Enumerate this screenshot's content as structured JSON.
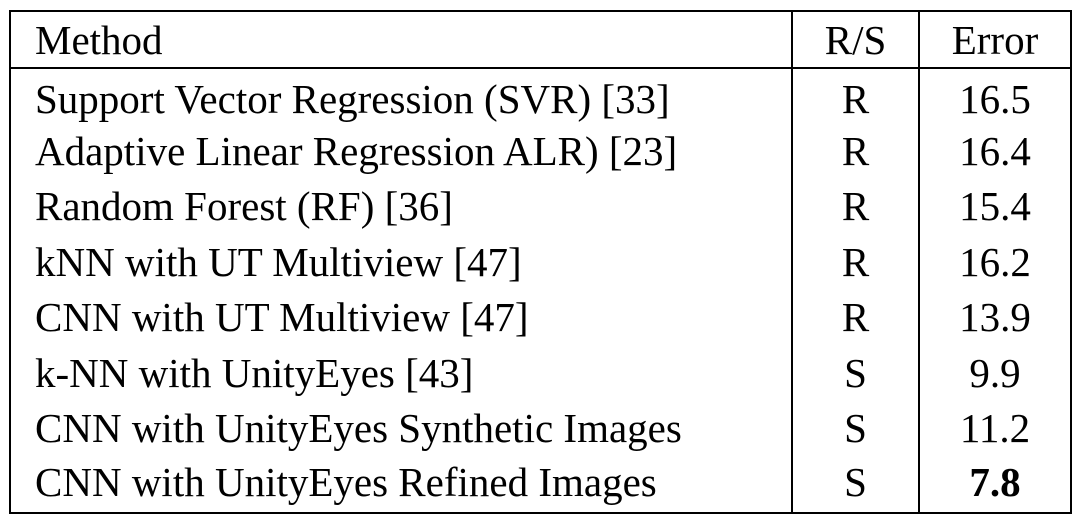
{
  "table": {
    "headers": {
      "method": "Method",
      "rs": "R/S",
      "error": "Error"
    },
    "rows": [
      {
        "method": "Support Vector Regression (SVR) [33]",
        "rs": "R",
        "error": "16.5"
      },
      {
        "method": "Adaptive Linear Regression ALR) [23]",
        "rs": "R",
        "error": "16.4"
      },
      {
        "method": "Random Forest (RF) [36]",
        "rs": "R",
        "error": "15.4"
      },
      {
        "method": "kNN with UT Multiview [47]",
        "rs": "R",
        "error": "16.2"
      },
      {
        "method": "CNN with UT Multiview [47]",
        "rs": "R",
        "error": "13.9"
      },
      {
        "method": "k-NN with UnityEyes [43]",
        "rs": "S",
        "error": "9.9"
      },
      {
        "method": "CNN with UnityEyes Synthetic Images",
        "rs": "S",
        "error": "11.2"
      },
      {
        "method": "CNN with UnityEyes Refined Images",
        "rs": "S",
        "error": "7.8"
      }
    ]
  }
}
